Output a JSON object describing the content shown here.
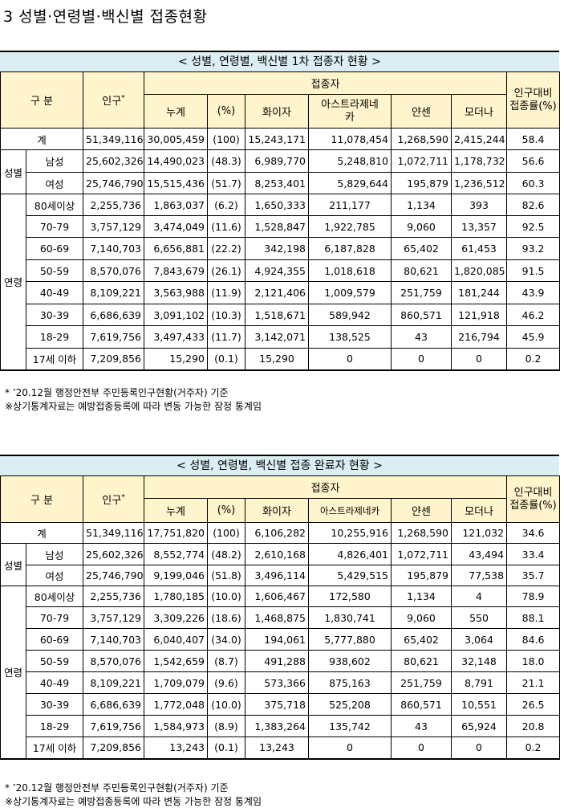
{
  "heading": "3  성별·연령별·백신별 접종현황",
  "columns": {
    "gubun": "구 분",
    "population": "인구",
    "population_mark": "*",
    "vaccinated": "접종자",
    "total": "누계",
    "percent": "(%)",
    "pfizer": "화이자",
    "az_full": "아스트라제네카",
    "az_part1": "아스트라제네",
    "az_part2": "카",
    "janssen": "얀센",
    "moderna": "모더나",
    "rate_line1": "인구대비",
    "rate_line2": "접종률(%)"
  },
  "labels": {
    "sex": "성별",
    "age": "연령"
  },
  "tables": [
    {
      "title": "< 성별, 연령별, 백신별 1차 접종자 현황 >",
      "rows": [
        {
          "label": "계",
          "pop": "51,349,116",
          "total": "30,005,459",
          "pct": "(100)",
          "pfizer": "15,243,171",
          "az": "11,078,454",
          "janssen": "1,268,590",
          "moderna": "2,415,244",
          "rate": "58.4"
        },
        {
          "label": "남성",
          "pop": "25,602,326",
          "total": "14,490,023",
          "pct": "(48.3)",
          "pfizer": "6,989,770",
          "az": "5,248,810",
          "janssen": "1,072,711",
          "moderna": "1,178,732",
          "rate": "56.6"
        },
        {
          "label": "여성",
          "pop": "25,746,790",
          "total": "15,515,436",
          "pct": "(51.7)",
          "pfizer": "8,253,401",
          "az": "5,829,644",
          "janssen": "195,879",
          "moderna": "1,236,512",
          "rate": "60.3"
        },
        {
          "label": "80세이상",
          "pop": "2,255,736",
          "total": "1,863,037",
          "pct": "(6.2)",
          "pfizer": "1,650,333",
          "az": "211,177",
          "janssen": "1,134",
          "moderna": "393",
          "rate": "82.6"
        },
        {
          "label": "70-79",
          "pop": "3,757,129",
          "total": "3,474,049",
          "pct": "(11.6)",
          "pfizer": "1,528,847",
          "az": "1,922,785",
          "janssen": "9,060",
          "moderna": "13,357",
          "rate": "92.5"
        },
        {
          "label": "60-69",
          "pop": "7,140,703",
          "total": "6,656,881",
          "pct": "(22.2)",
          "pfizer": "342,198",
          "az": "6,187,828",
          "janssen": "65,402",
          "moderna": "61,453",
          "rate": "93.2"
        },
        {
          "label": "50-59",
          "pop": "8,570,076",
          "total": "7,843,679",
          "pct": "(26.1)",
          "pfizer": "4,924,355",
          "az": "1,018,618",
          "janssen": "80,621",
          "moderna": "1,820,085",
          "rate": "91.5"
        },
        {
          "label": "40-49",
          "pop": "8,109,221",
          "total": "3,563,988",
          "pct": "(11.9)",
          "pfizer": "2,121,406",
          "az": "1,009,579",
          "janssen": "251,759",
          "moderna": "181,244",
          "rate": "43.9"
        },
        {
          "label": "30-39",
          "pop": "6,686,639",
          "total": "3,091,102",
          "pct": "(10.3)",
          "pfizer": "1,518,671",
          "az": "589,942",
          "janssen": "860,571",
          "moderna": "121,918",
          "rate": "46.2"
        },
        {
          "label": "18-29",
          "pop": "7,619,756",
          "total": "3,497,433",
          "pct": "(11.7)",
          "pfizer": "3,142,071",
          "az": "138,525",
          "janssen": "43",
          "moderna": "216,794",
          "rate": "45.9"
        },
        {
          "label": "17세 이하",
          "pop": "7,209,856",
          "total": "15,290",
          "pct": "(0.1)",
          "pfizer": "15,290",
          "az": "0",
          "janssen": "0",
          "moderna": "0",
          "rate": "0.2"
        }
      ],
      "notes": [
        "* ’20.12월 행정안전부 주민등록인구현황(거주자) 기준",
        "※상기통계자료는 예방접종등록에 따라 변동 가능한 잠정 통계임"
      ]
    },
    {
      "title": "< 성별, 연령별, 백신별 접종 완료자 현황 >",
      "rows": [
        {
          "label": "계",
          "pop": "51,349,116",
          "total": "17,751,820",
          "pct": "(100)",
          "pfizer": "6,106,282",
          "az": "10,255,916",
          "janssen": "1,268,590",
          "moderna": "121,032",
          "rate": "34.6"
        },
        {
          "label": "남성",
          "pop": "25,602,326",
          "total": "8,552,774",
          "pct": "(48.2)",
          "pfizer": "2,610,168",
          "az": "4,826,401",
          "janssen": "1,072,711",
          "moderna": "43,494",
          "rate": "33.4"
        },
        {
          "label": "여성",
          "pop": "25,746,790",
          "total": "9,199,046",
          "pct": "(51.8)",
          "pfizer": "3,496,114",
          "az": "5,429,515",
          "janssen": "195,879",
          "moderna": "77,538",
          "rate": "35.7"
        },
        {
          "label": "80세이상",
          "pop": "2,255,736",
          "total": "1,780,185",
          "pct": "(10.0)",
          "pfizer": "1,606,467",
          "az": "172,580",
          "janssen": "1,134",
          "moderna": "4",
          "rate": "78.9"
        },
        {
          "label": "70-79",
          "pop": "3,757,129",
          "total": "3,309,226",
          "pct": "(18.6)",
          "pfizer": "1,468,875",
          "az": "1,830,741",
          "janssen": "9,060",
          "moderna": "550",
          "rate": "88.1"
        },
        {
          "label": "60-69",
          "pop": "7,140,703",
          "total": "6,040,407",
          "pct": "(34.0)",
          "pfizer": "194,061",
          "az": "5,777,880",
          "janssen": "65,402",
          "moderna": "3,064",
          "rate": "84.6"
        },
        {
          "label": "50-59",
          "pop": "8,570,076",
          "total": "1,542,659",
          "pct": "(8.7)",
          "pfizer": "491,288",
          "az": "938,602",
          "janssen": "80,621",
          "moderna": "32,148",
          "rate": "18.0"
        },
        {
          "label": "40-49",
          "pop": "8,109,221",
          "total": "1,709,079",
          "pct": "(9.6)",
          "pfizer": "573,366",
          "az": "875,163",
          "janssen": "251,759",
          "moderna": "8,791",
          "rate": "21.1"
        },
        {
          "label": "30-39",
          "pop": "6,686,639",
          "total": "1,772,048",
          "pct": "(10.0)",
          "pfizer": "375,718",
          "az": "525,208",
          "janssen": "860,571",
          "moderna": "10,551",
          "rate": "26.5"
        },
        {
          "label": "18-29",
          "pop": "7,619,756",
          "total": "1,584,973",
          "pct": "(8.9)",
          "pfizer": "1,383,264",
          "az": "135,742",
          "janssen": "43",
          "moderna": "65,924",
          "rate": "20.8"
        },
        {
          "label": "17세 이하",
          "pop": "7,209,856",
          "total": "13,243",
          "pct": "(0.1)",
          "pfizer": "13,243",
          "az": "0",
          "janssen": "0",
          "moderna": "0",
          "rate": "0.2"
        }
      ],
      "notes": [
        "* ’20.12월 행정안전부 주민등록인구현황(거주자) 기준",
        "※상기통계자료는 예방접종등록에 따라 변동 가능한 잠정 통계임"
      ]
    }
  ]
}
